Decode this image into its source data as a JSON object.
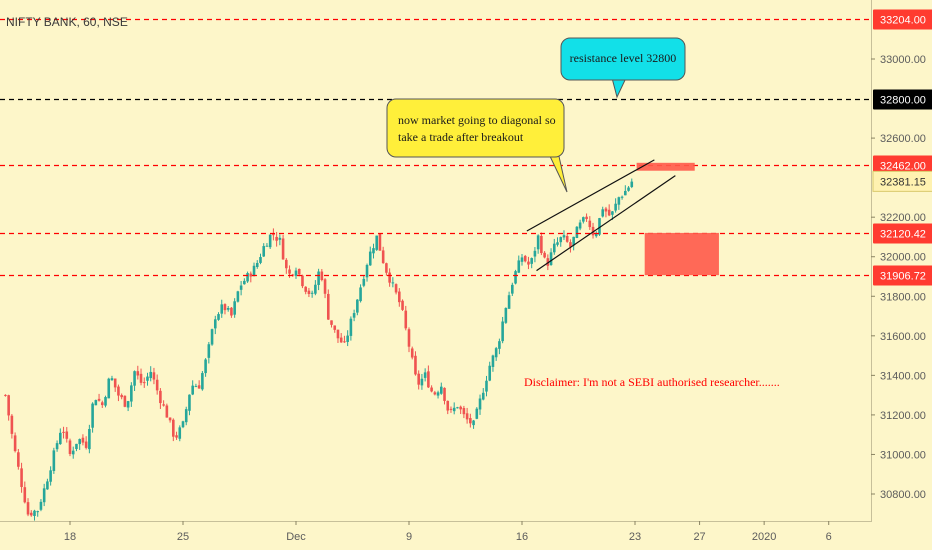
{
  "symbol_title": "NIFTY BANK, 60, NSE",
  "colors": {
    "background": "#fdf6c9",
    "up": "#26a69a",
    "down": "#ef5350",
    "level_red": "#ff0000",
    "level_black": "#000000",
    "zone": "#ff5a4a",
    "callout_yellow": "#ffef3a",
    "callout_cyan": "#12e0e8",
    "disclaimer": "#ff0000"
  },
  "chart_data": {
    "type": "candlestick",
    "title": "NIFTY BANK, 60, NSE",
    "y_ticks": [
      "30800.00",
      "31000.00",
      "31200.00",
      "31400.00",
      "31600.00",
      "31800.00",
      "32000.00",
      "32200.00",
      "32600.00",
      "33000.00"
    ],
    "y_tick_values": [
      30800,
      31000,
      31200,
      31400,
      31600,
      31800,
      32000,
      32200,
      32600,
      33000
    ],
    "x_ticks": [
      "18",
      "25",
      "Dec",
      "9",
      "16",
      "23",
      "27",
      "2020",
      "6"
    ],
    "x_tick_positions": [
      1,
      8,
      15,
      22,
      29,
      36,
      40,
      44,
      48
    ],
    "x_range": [
      -3,
      50
    ],
    "y_range": [
      30700,
      33220
    ],
    "close_path": [
      [
        -3,
        31300
      ],
      [
        -2.5,
        31050
      ],
      [
        -2,
        30850
      ],
      [
        -1.6,
        30700
      ],
      [
        -1,
        30720
      ],
      [
        -0.5,
        30850
      ],
      [
        0,
        31000
      ],
      [
        0.5,
        31150
      ],
      [
        1,
        31000
      ],
      [
        1.5,
        31080
      ],
      [
        2,
        31050
      ],
      [
        2.5,
        31300
      ],
      [
        3,
        31250
      ],
      [
        3.5,
        31400
      ],
      [
        4,
        31300
      ],
      [
        4.5,
        31250
      ],
      [
        5,
        31420
      ],
      [
        5.5,
        31350
      ],
      [
        6,
        31420
      ],
      [
        6.5,
        31300
      ],
      [
        7,
        31200
      ],
      [
        7.5,
        31080
      ],
      [
        8,
        31150
      ],
      [
        8.5,
        31350
      ],
      [
        9,
        31350
      ],
      [
        9.5,
        31500
      ],
      [
        10,
        31700
      ],
      [
        10.5,
        31750
      ],
      [
        11,
        31700
      ],
      [
        11.5,
        31850
      ],
      [
        12,
        31900
      ],
      [
        12.5,
        31950
      ],
      [
        13,
        32050
      ],
      [
        13.5,
        32120
      ],
      [
        14,
        32080
      ],
      [
        14.5,
        31900
      ],
      [
        15,
        31950
      ],
      [
        15.5,
        31850
      ],
      [
        16,
        31800
      ],
      [
        16.5,
        31950
      ],
      [
        17,
        31700
      ],
      [
        17.5,
        31600
      ],
      [
        18,
        31550
      ],
      [
        18.5,
        31700
      ],
      [
        19,
        31850
      ],
      [
        19.5,
        32000
      ],
      [
        20,
        32100
      ],
      [
        20.5,
        31950
      ],
      [
        21,
        31850
      ],
      [
        21.5,
        31750
      ],
      [
        22,
        31550
      ],
      [
        22.5,
        31350
      ],
      [
        23,
        31400
      ],
      [
        23.5,
        31300
      ],
      [
        24,
        31350
      ],
      [
        24.5,
        31200
      ],
      [
        25,
        31250
      ],
      [
        25.5,
        31180
      ],
      [
        26,
        31150
      ],
      [
        26.5,
        31300
      ],
      [
        27,
        31450
      ],
      [
        27.5,
        31550
      ],
      [
        28,
        31750
      ],
      [
        28.5,
        31900
      ],
      [
        29,
        32000
      ],
      [
        29.5,
        31950
      ],
      [
        30,
        32100
      ],
      [
        30.5,
        31950
      ],
      [
        31,
        32050
      ],
      [
        31.5,
        32100
      ],
      [
        32,
        32050
      ],
      [
        32.5,
        32150
      ],
      [
        33,
        32200
      ],
      [
        33.5,
        32100
      ],
      [
        34,
        32250
      ],
      [
        34.5,
        32200
      ],
      [
        35,
        32300
      ],
      [
        35.5,
        32340
      ],
      [
        35.8,
        32381
      ]
    ],
    "levels": [
      {
        "label": "33204.00",
        "value": 33204,
        "color": "#ff0000",
        "style": "dashed"
      },
      {
        "label": "32800.00",
        "value": 32800,
        "color": "#000000",
        "style": "dashed"
      },
      {
        "label": "32462.00",
        "value": 32462,
        "color": "#ff0000",
        "style": "dashed"
      },
      {
        "label": "32120.42",
        "value": 32120.42,
        "color": "#ff0000",
        "style": "dashed"
      },
      {
        "label": "31906.72",
        "value": 31906.72,
        "color": "#ff0000",
        "style": "dashed"
      }
    ],
    "last_price": {
      "label": "32381.15",
      "value": 32381.15
    },
    "wedge": {
      "upper": [
        [
          29.3,
          32130
        ],
        [
          37.2,
          32490
        ]
      ],
      "lower": [
        [
          29.9,
          31930
        ],
        [
          38.5,
          32410
        ]
      ]
    },
    "zones": [
      {
        "x": [
          36.1,
          39.7
        ],
        "y": [
          32435,
          32475
        ]
      },
      {
        "x": [
          36.6,
          41.2
        ],
        "y": [
          31906.72,
          32120.42
        ]
      }
    ],
    "annotations": [
      {
        "id": "diagonal-note",
        "text": [
          "now market going to diagonal so",
          "take a trade after breakout"
        ],
        "pointer": [
          33,
          32200
        ]
      },
      {
        "id": "resistance-note",
        "text": [
          "resistance level 32800"
        ],
        "pointer": [
          35,
          32800
        ]
      },
      {
        "id": "disclaimer",
        "text": [
          "Disclaimer: I'm not a SEBI authorised researcher......."
        ]
      }
    ]
  }
}
